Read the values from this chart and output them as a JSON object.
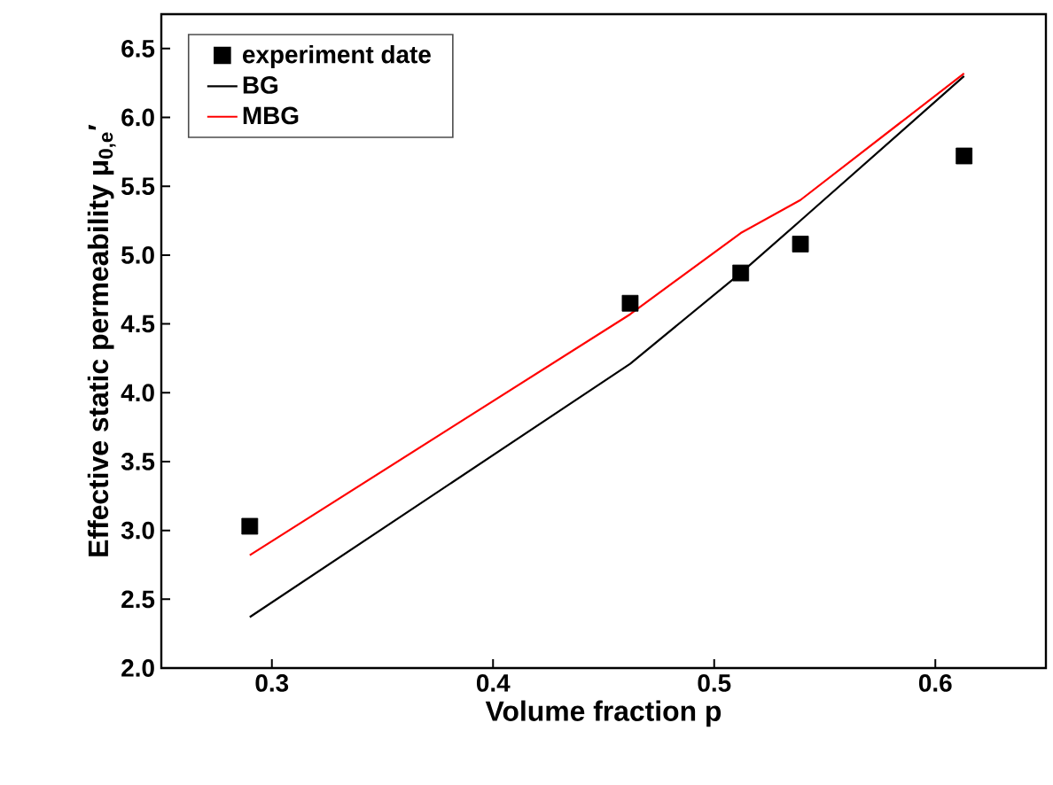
{
  "chart_data": {
    "type": "line",
    "xlabel": "Volume fraction p",
    "ylabel": "Effective static permeability μ$_{0,e}$′",
    "xlim": [
      0.25,
      0.65
    ],
    "xticks": [
      0.3,
      0.4,
      0.5,
      0.6
    ],
    "ylim": [
      2.0,
      6.75
    ],
    "yticks": [
      {
        "value": 2.0,
        "label": "2.0"
      },
      {
        "value": 2.5,
        "label": "2.5"
      },
      {
        "value": 3.0,
        "label": "3.0"
      },
      {
        "value": 3.5,
        "label": "3.5"
      },
      {
        "value": 4.0,
        "label": "4.0"
      },
      {
        "value": 4.5,
        "label": "4.5"
      },
      {
        "value": 5.0,
        "label": "5.0"
      },
      {
        "value": 5.5,
        "label": "5.5"
      },
      {
        "value": 6.0,
        "label": "6.0"
      },
      {
        "value": 6.5,
        "label": "6.5"
      }
    ],
    "legend": "top left",
    "series": [
      {
        "name": "experiment date",
        "type": "scatter",
        "marker": "square",
        "color": "#000000",
        "x": [
          0.29,
          0.462,
          0.512,
          0.539,
          0.613
        ],
        "values": [
          3.03,
          4.65,
          4.87,
          5.08,
          5.72
        ]
      },
      {
        "name": "BG",
        "line_style": "solid",
        "color": "#000000",
        "x": [
          0.29,
          0.462,
          0.512,
          0.539,
          0.613
        ],
        "values": [
          2.37,
          4.21,
          4.87,
          5.25,
          6.3
        ]
      },
      {
        "name": "MBG",
        "line_style": "solid",
        "color": "#ff0000",
        "x": [
          0.29,
          0.462,
          0.512,
          0.539,
          0.613
        ],
        "values": [
          2.82,
          4.57,
          5.16,
          5.4,
          6.32
        ]
      }
    ]
  }
}
